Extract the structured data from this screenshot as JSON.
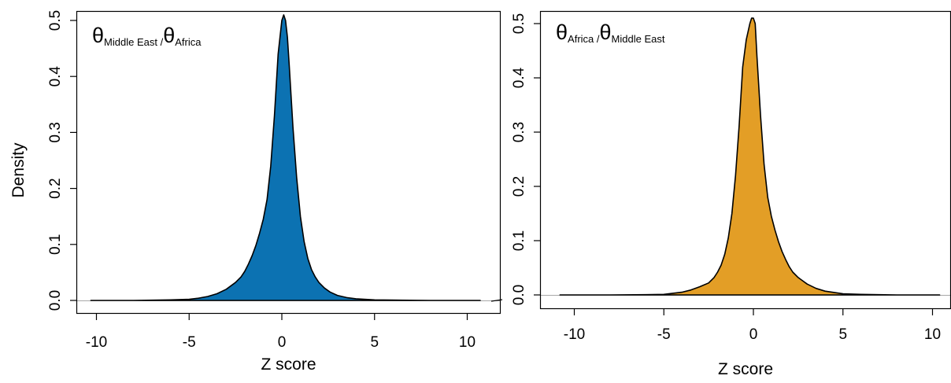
{
  "chart_data": [
    {
      "type": "area",
      "title_theta": "θ",
      "title_num_sub": "Middle East",
      "title_sep": " /",
      "title_den_sub": "Africa",
      "xlabel": "Z score",
      "ylabel": "Density",
      "xlim": [
        -11,
        11
      ],
      "ylim": [
        0,
        0.5
      ],
      "xticks": [
        -10,
        -5,
        0,
        5,
        10
      ],
      "xtick_labels": [
        "-10",
        "-5",
        "0",
        "5",
        "10"
      ],
      "yticks": [
        0.0,
        0.1,
        0.2,
        0.3,
        0.4,
        0.5
      ],
      "ytick_labels": [
        "0.0",
        "0.1",
        "0.2",
        "0.3",
        "0.4",
        "0.5"
      ],
      "fill_color": "#0c72b2",
      "grid": false,
      "series": [
        {
          "x": [
            -10.3,
            -8,
            -6,
            -5,
            -4.5,
            -4,
            -3.5,
            -3,
            -2.5,
            -2.2,
            -2,
            -1.8,
            -1.6,
            -1.4,
            -1.2,
            -1.0,
            -0.8,
            -0.6,
            -0.4,
            -0.2,
            0.0,
            0.1,
            0.2,
            0.3,
            0.4,
            0.6,
            0.8,
            1.0,
            1.2,
            1.4,
            1.6,
            1.8,
            2.0,
            2.3,
            2.6,
            3.0,
            3.5,
            4.0,
            5.0,
            6.0,
            8.0,
            10.7
          ],
          "y": [
            0.0,
            0.0,
            0.001,
            0.002,
            0.004,
            0.007,
            0.012,
            0.02,
            0.032,
            0.042,
            0.052,
            0.065,
            0.08,
            0.098,
            0.12,
            0.145,
            0.18,
            0.24,
            0.33,
            0.44,
            0.5,
            0.51,
            0.5,
            0.47,
            0.42,
            0.31,
            0.22,
            0.15,
            0.105,
            0.075,
            0.055,
            0.042,
            0.032,
            0.022,
            0.015,
            0.009,
            0.005,
            0.003,
            0.001,
            0.0005,
            0.0,
            0.0
          ]
        }
      ]
    },
    {
      "type": "area",
      "title_theta": "θ",
      "title_num_sub": "Africa",
      "title_sep": " /",
      "title_den_sub": "Middle East",
      "xlabel": "Z score",
      "ylabel": "",
      "xlim": [
        -11,
        11
      ],
      "ylim": [
        0,
        0.5
      ],
      "xticks": [
        -10,
        -5,
        0,
        5,
        10
      ],
      "xtick_labels": [
        "-10",
        "-5",
        "0",
        "5",
        "10"
      ],
      "yticks": [
        0.0,
        0.1,
        0.2,
        0.3,
        0.4,
        0.5
      ],
      "ytick_labels": [
        "0.0",
        "0.1",
        "0.2",
        "0.3",
        "0.4",
        "0.5"
      ],
      "fill_color": "#e39e26",
      "grid": false,
      "series": [
        {
          "x": [
            -10.8,
            -8,
            -6,
            -5,
            -4.5,
            -4,
            -3.5,
            -3,
            -2.5,
            -2.2,
            -2,
            -1.8,
            -1.6,
            -1.4,
            -1.2,
            -1.0,
            -0.8,
            -0.6,
            -0.4,
            -0.2,
            -0.1,
            0.0,
            0.1,
            0.2,
            0.4,
            0.6,
            0.8,
            1.0,
            1.2,
            1.4,
            1.6,
            1.8,
            2.0,
            2.2,
            2.5,
            3.0,
            3.5,
            4.0,
            5.0,
            6.0,
            8.0,
            10.4
          ],
          "y": [
            0.0,
            0.0,
            0.0005,
            0.001,
            0.003,
            0.005,
            0.009,
            0.015,
            0.022,
            0.032,
            0.042,
            0.055,
            0.075,
            0.105,
            0.15,
            0.22,
            0.31,
            0.42,
            0.47,
            0.5,
            0.51,
            0.51,
            0.5,
            0.44,
            0.33,
            0.24,
            0.18,
            0.145,
            0.12,
            0.098,
            0.08,
            0.065,
            0.052,
            0.042,
            0.032,
            0.02,
            0.012,
            0.007,
            0.002,
            0.001,
            0.0,
            0.0
          ]
        }
      ]
    }
  ]
}
